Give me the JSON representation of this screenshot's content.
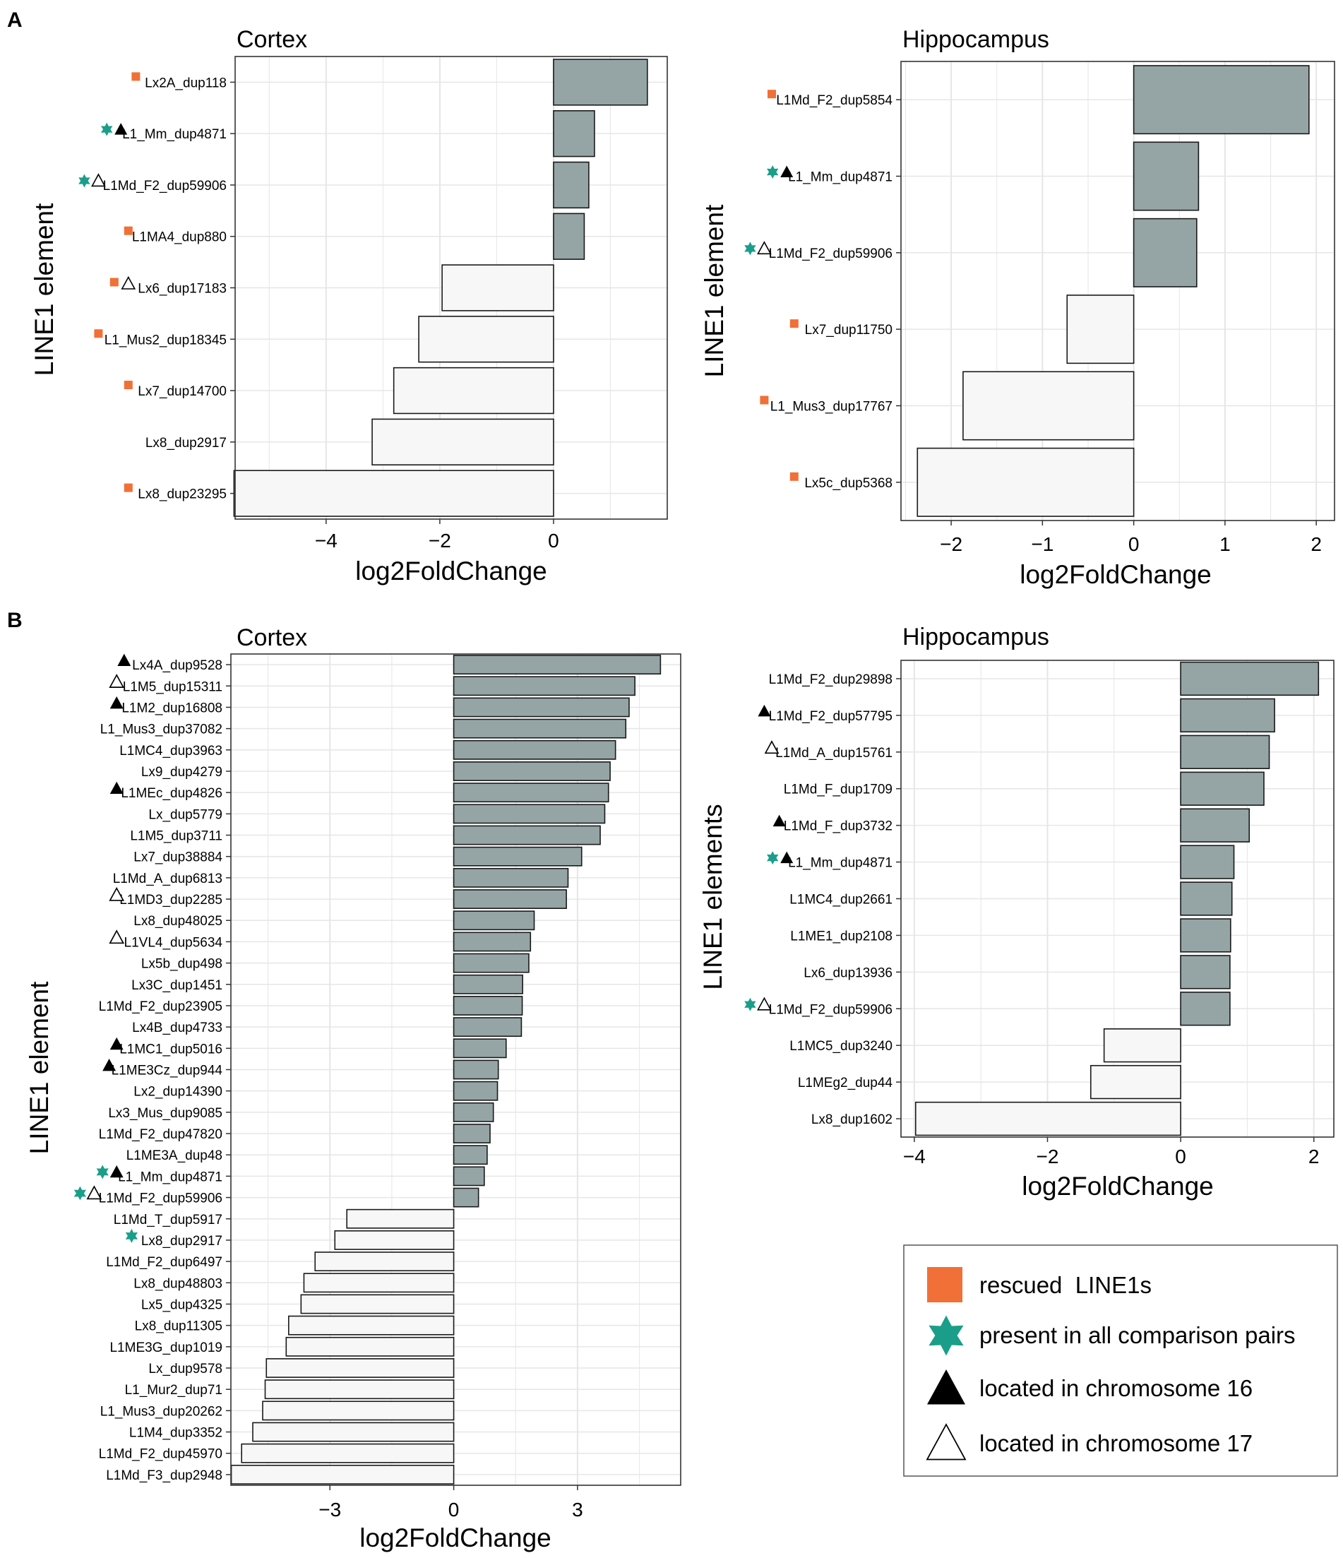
{
  "figure": {
    "panel_labels": [
      "A",
      "B"
    ],
    "legend": {
      "items": [
        {
          "key": "rescued",
          "label": "rescued  LINE1s",
          "marker": "orange-square-icon"
        },
        {
          "key": "all",
          "label": "present in all comparison pairs",
          "marker": "teal-star-icon"
        },
        {
          "key": "chr16",
          "label": "located in chromosome 16",
          "marker": "filled-triangle-icon"
        },
        {
          "key": "chr17",
          "label": "located in chromosome 17",
          "marker": "open-triangle-icon"
        }
      ]
    },
    "colors": {
      "positive_bar": "#95a5a6",
      "negative_bar": "#f7f7f7",
      "bar_stroke": "#1a1a1a",
      "rescued": "#f07038",
      "all_pairs": "#1a9e8a",
      "grid": "#e6e6e6"
    }
  },
  "chart_data": [
    {
      "id": "A-cortex",
      "panel": "A",
      "type": "bar",
      "orientation": "horizontal",
      "title": "Cortex",
      "xlabel": "log2FoldChange",
      "ylabel": "LINE1 element",
      "xlim": [
        -5.6,
        2.0
      ],
      "xticks": [
        -4,
        -2,
        0
      ],
      "xtick_labels": [
        "−4",
        "−2",
        "0"
      ],
      "categories": [
        "Lx2A_dup118",
        "L1_Mm_dup4871",
        "L1Md_F2_dup59906",
        "L1MA4_dup880",
        "Lx6_dup17183",
        "L1_Mus2_dup18345",
        "Lx7_dup14700",
        "Lx8_dup2917",
        "Lx8_dup23295"
      ],
      "values": [
        1.65,
        0.72,
        0.62,
        0.54,
        -1.96,
        -2.37,
        -2.81,
        -3.19,
        -5.62
      ],
      "markers": [
        [
          "rescued"
        ],
        [
          "all",
          "chr16"
        ],
        [
          "all",
          "chr17"
        ],
        [
          "rescued"
        ],
        [
          "rescued",
          "chr17"
        ],
        [
          "rescued"
        ],
        [
          "rescued"
        ],
        [],
        [
          "rescued"
        ]
      ]
    },
    {
      "id": "A-hippocampus",
      "panel": "A",
      "type": "bar",
      "orientation": "horizontal",
      "title": "Hippocampus",
      "xlabel": "log2FoldChange",
      "ylabel": "LINE1 element",
      "xlim": [
        -2.55,
        2.2
      ],
      "xticks": [
        -2,
        -1,
        0,
        1,
        2
      ],
      "xtick_labels": [
        "−2",
        "−1",
        "0",
        "1",
        "2"
      ],
      "categories": [
        "L1Md_F2_dup5854",
        "L1_Mm_dup4871",
        "L1Md_F2_dup59906",
        "Lx7_dup11750",
        "L1_Mus3_dup17767",
        "Lx5c_dup5368"
      ],
      "values": [
        1.92,
        0.71,
        0.69,
        -0.73,
        -1.87,
        -2.37
      ],
      "markers": [
        [
          "rescued"
        ],
        [
          "all",
          "chr16"
        ],
        [
          "all",
          "chr17"
        ],
        [
          "rescued"
        ],
        [
          "rescued"
        ],
        [
          "rescued"
        ]
      ]
    },
    {
      "id": "B-cortex",
      "panel": "B",
      "type": "bar",
      "orientation": "horizontal",
      "title": "Cortex",
      "xlabel": "log2FoldChange",
      "ylabel": "LINE1 element",
      "xlim": [
        -5.4,
        5.5
      ],
      "xticks": [
        -3,
        0,
        3
      ],
      "xtick_labels": [
        "−3",
        "0",
        "3"
      ],
      "categories": [
        "Lx4A_dup9528",
        "L1M5_dup15311",
        "L1M2_dup16808",
        "L1_Mus3_dup37082",
        "L1MC4_dup3963",
        "Lx9_dup4279",
        "L1MEc_dup4826",
        "Lx_dup5779",
        "L1M5_dup3711",
        "Lx7_dup38884",
        "L1Md_A_dup6813",
        "L1MD3_dup2285",
        "Lx8_dup48025",
        "L1VL4_dup5634",
        "Lx5b_dup498",
        "Lx3C_dup1451",
        "L1Md_F2_dup23905",
        "Lx4B_dup4733",
        "L1MC1_dup5016",
        "L1ME3Cz_dup944",
        "Lx2_dup14390",
        "Lx3_Mus_dup9085",
        "L1Md_F2_dup47820",
        "L1ME3A_dup48",
        "L1_Mm_dup4871",
        "L1Md_F2_dup59906",
        "L1Md_T_dup5917",
        "Lx8_dup2917",
        "L1Md_F2_dup6497",
        "Lx8_dup48803",
        "Lx5_dup4325",
        "Lx8_dup11305",
        "L1ME3G_dup1019",
        "Lx_dup9578",
        "L1_Mur2_dup71",
        "L1_Mus3_dup20262",
        "L1M4_dup3352",
        "L1Md_F2_dup45970",
        "L1Md_F3_dup2948"
      ],
      "values": [
        5.01,
        4.39,
        4.25,
        4.17,
        3.92,
        3.79,
        3.75,
        3.66,
        3.55,
        3.1,
        2.77,
        2.73,
        1.95,
        1.86,
        1.82,
        1.67,
        1.66,
        1.64,
        1.27,
        1.08,
        1.06,
        0.96,
        0.88,
        0.81,
        0.74,
        0.6,
        -2.59,
        -2.88,
        -3.36,
        -3.63,
        -3.7,
        -4.0,
        -4.06,
        -4.54,
        -4.57,
        -4.63,
        -4.87,
        -5.14,
        -5.39
      ],
      "markers": [
        [
          "chr16"
        ],
        [
          "chr17"
        ],
        [
          "chr16"
        ],
        [],
        [],
        [],
        [
          "chr16"
        ],
        [],
        [],
        [],
        [],
        [
          "chr17"
        ],
        [],
        [
          "chr17"
        ],
        [],
        [],
        [],
        [],
        [
          "chr16"
        ],
        [
          "chr16"
        ],
        [],
        [],
        [],
        [],
        [
          "all",
          "chr16"
        ],
        [
          "all",
          "chr17"
        ],
        [],
        [
          "all"
        ],
        [],
        [],
        [],
        [],
        [],
        [],
        [],
        [],
        [],
        [],
        []
      ]
    },
    {
      "id": "B-hippocampus",
      "panel": "B",
      "type": "bar",
      "orientation": "horizontal",
      "title": "Hippocampus",
      "xlabel": "log2FoldChange",
      "ylabel": "LINE1 elements",
      "xlim": [
        -4.2,
        2.3
      ],
      "xticks": [
        -4,
        -2,
        0,
        2
      ],
      "xtick_labels": [
        "−4",
        "−2",
        "0",
        "2"
      ],
      "categories": [
        "L1Md_F2_dup29898",
        "L1Md_F2_dup57795",
        "L1Md_A_dup15761",
        "L1Md_F_dup1709",
        "L1Md_F_dup3732",
        "L1_Mm_dup4871",
        "L1MC4_dup2661",
        "L1ME1_dup2108",
        "Lx6_dup13936",
        "L1Md_F2_dup59906",
        "L1MC5_dup3240",
        "L1MEg2_dup44",
        "Lx8_dup1602"
      ],
      "values": [
        2.07,
        1.41,
        1.33,
        1.25,
        1.03,
        0.8,
        0.77,
        0.75,
        0.74,
        0.74,
        -1.15,
        -1.35,
        -3.98
      ],
      "markers": [
        [],
        [
          "chr16"
        ],
        [
          "chr17"
        ],
        [],
        [
          "chr16"
        ],
        [
          "all",
          "chr16"
        ],
        [],
        [],
        [],
        [
          "all",
          "chr17"
        ],
        [],
        [],
        []
      ]
    }
  ]
}
